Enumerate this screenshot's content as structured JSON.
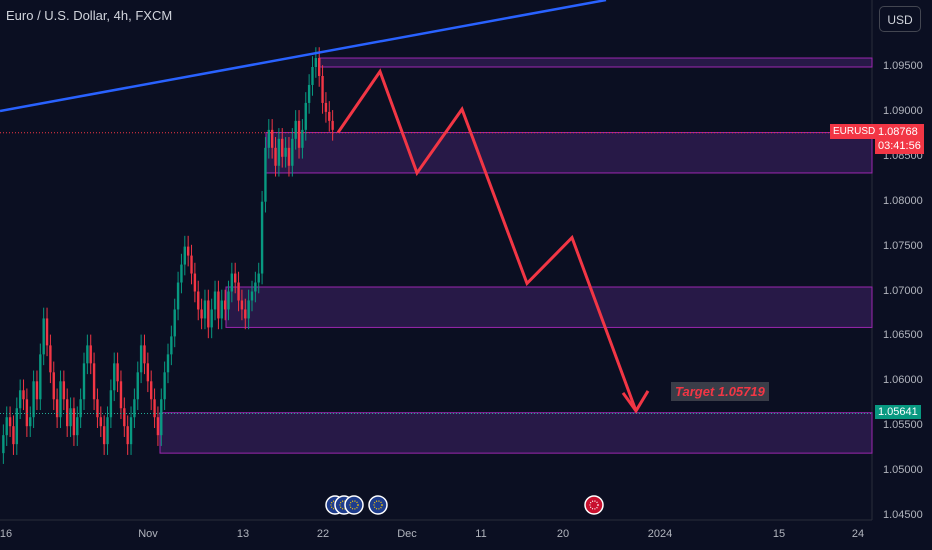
{
  "chart_data": {
    "type": "candlestick",
    "title": "Euro / U.S. Dollar, 4h, FXCM",
    "currency": "USD",
    "symbol": "EURUSD",
    "current_price": "1.08768",
    "countdown": "03:41:56",
    "target_badge": "1.05641",
    "target_label": "Target 1.05719",
    "y_ticks": [
      "1.09500",
      "1.09000",
      "1.08500",
      "1.08000",
      "1.07500",
      "1.07000",
      "1.06500",
      "1.06000",
      "1.05500",
      "1.05000",
      "1.04500"
    ],
    "y_values": [
      1.095,
      1.09,
      1.085,
      1.08,
      1.075,
      1.07,
      1.065,
      1.06,
      1.055,
      1.05,
      1.045
    ],
    "x_ticks": [
      "16",
      "Nov",
      "13",
      "22",
      "Dec",
      "11",
      "20",
      "2024",
      "15",
      "24"
    ],
    "colors": {
      "up": "#089981",
      "down": "#f23645",
      "zone_fill": "#2d1b4e",
      "zone_stroke": "#9c27b0",
      "trend": "#2962ff",
      "arrow": "#f23645"
    },
    "zones": [
      {
        "top": 1.096,
        "bottom": 1.095,
        "from": "22",
        "to": "right-edge"
      },
      {
        "top": 1.0877,
        "bottom": 1.0832,
        "from": "13",
        "to": "right-edge"
      },
      {
        "top": 1.0705,
        "bottom": 1.066,
        "from": "Nov",
        "to": "right-edge"
      },
      {
        "top": 1.0565,
        "bottom": 1.052,
        "from": "Nov",
        "to": "right-edge"
      }
    ],
    "projection_path": [
      1.0877,
      1.0945,
      1.0832,
      1.0903,
      1.0709,
      1.076,
      1.0567
    ],
    "events": [
      "EUR",
      "EUR",
      "EUR",
      "EUR",
      "USD"
    ]
  }
}
